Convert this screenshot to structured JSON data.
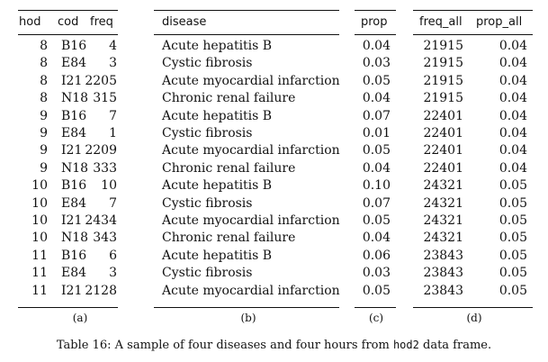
{
  "panel_a": {
    "headers": [
      "hod",
      "cod",
      "freq"
    ],
    "label": "(a)",
    "rows": [
      [
        "8",
        "B16",
        "4"
      ],
      [
        "8",
        "E84",
        "3"
      ],
      [
        "8",
        "I21",
        "2205"
      ],
      [
        "8",
        "N18",
        "315"
      ],
      [
        "9",
        "B16",
        "7"
      ],
      [
        "9",
        "E84",
        "1"
      ],
      [
        "9",
        "I21",
        "2209"
      ],
      [
        "9",
        "N18",
        "333"
      ],
      [
        "10",
        "B16",
        "10"
      ],
      [
        "10",
        "E84",
        "7"
      ],
      [
        "10",
        "I21",
        "2434"
      ],
      [
        "10",
        "N18",
        "343"
      ],
      [
        "11",
        "B16",
        "6"
      ],
      [
        "11",
        "E84",
        "3"
      ],
      [
        "11",
        "I21",
        "2128"
      ]
    ]
  },
  "panel_b": {
    "headers": [
      "disease"
    ],
    "label": "(b)",
    "rows": [
      [
        "Acute hepatitis B"
      ],
      [
        "Cystic fibrosis"
      ],
      [
        "Acute myocardial infarction"
      ],
      [
        "Chronic renal failure"
      ],
      [
        "Acute hepatitis B"
      ],
      [
        "Cystic fibrosis"
      ],
      [
        "Acute myocardial infarction"
      ],
      [
        "Chronic renal failure"
      ],
      [
        "Acute hepatitis B"
      ],
      [
        "Cystic fibrosis"
      ],
      [
        "Acute myocardial infarction"
      ],
      [
        "Chronic renal failure"
      ],
      [
        "Acute hepatitis B"
      ],
      [
        "Cystic fibrosis"
      ],
      [
        "Acute myocardial infarction"
      ]
    ]
  },
  "panel_c": {
    "headers": [
      "prop"
    ],
    "label": "(c)",
    "rows": [
      [
        "0.04"
      ],
      [
        "0.03"
      ],
      [
        "0.05"
      ],
      [
        "0.04"
      ],
      [
        "0.07"
      ],
      [
        "0.01"
      ],
      [
        "0.05"
      ],
      [
        "0.04"
      ],
      [
        "0.10"
      ],
      [
        "0.07"
      ],
      [
        "0.05"
      ],
      [
        "0.04"
      ],
      [
        "0.06"
      ],
      [
        "0.03"
      ],
      [
        "0.05"
      ]
    ]
  },
  "panel_d": {
    "headers": [
      "freq_all",
      "prop_all"
    ],
    "label": "(d)",
    "rows": [
      [
        "21915",
        "0.04"
      ],
      [
        "21915",
        "0.04"
      ],
      [
        "21915",
        "0.04"
      ],
      [
        "21915",
        "0.04"
      ],
      [
        "22401",
        "0.04"
      ],
      [
        "22401",
        "0.04"
      ],
      [
        "22401",
        "0.04"
      ],
      [
        "22401",
        "0.04"
      ],
      [
        "24321",
        "0.05"
      ],
      [
        "24321",
        "0.05"
      ],
      [
        "24321",
        "0.05"
      ],
      [
        "24321",
        "0.05"
      ],
      [
        "23843",
        "0.05"
      ],
      [
        "23843",
        "0.05"
      ],
      [
        "23843",
        "0.05"
      ]
    ]
  },
  "caption": {
    "prefix": "Table 16: A sample of four diseases and four hours from ",
    "code": "hod2",
    "suffix": " data frame."
  }
}
